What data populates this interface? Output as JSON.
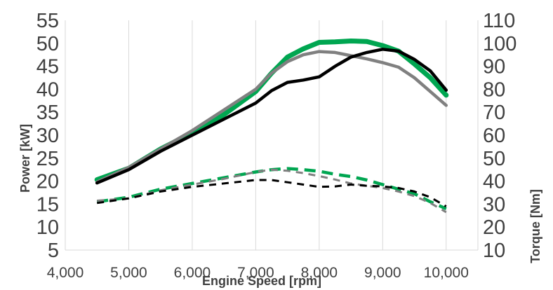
{
  "chart_data": {
    "type": "line",
    "xlabel": "Engine Speed [rpm]",
    "ylabel_left": "Power [kW]",
    "ylabel_right": "Torque [Nm]",
    "xlim": [
      4000,
      10500
    ],
    "x_ticks": [
      "4,000",
      "5,000",
      "6,000",
      "7,000",
      "8,000",
      "9,000",
      "10,000"
    ],
    "y_left_lim": [
      5,
      55
    ],
    "y_left_ticks": [
      "5",
      "10",
      "15",
      "20",
      "25",
      "30",
      "35",
      "40",
      "45",
      "50",
      "55"
    ],
    "y_right_lim": [
      10,
      110
    ],
    "y_right_ticks": [
      "10",
      "20",
      "30",
      "40",
      "50",
      "60",
      "70",
      "80",
      "90",
      "100",
      "110"
    ],
    "grid": "vertical",
    "legend": "none",
    "series": [
      {
        "axis": "left",
        "style": "solid",
        "color": "#00a651",
        "x": [
          4500,
          5000,
          5500,
          6000,
          6500,
          7000,
          7250,
          7500,
          7750,
          8000,
          8250,
          8500,
          8750,
          9000,
          9250,
          9500,
          9750,
          10000
        ],
        "y": [
          20.3,
          22.8,
          27.0,
          30.5,
          34.5,
          39.5,
          43.5,
          47.0,
          48.8,
          50.2,
          50.3,
          50.5,
          50.4,
          49.5,
          48.3,
          45.5,
          42.5,
          38.7
        ]
      },
      {
        "axis": "left",
        "style": "solid",
        "color": "#808080",
        "x": [
          4500,
          5000,
          5500,
          6000,
          6500,
          7000,
          7250,
          7500,
          7750,
          8000,
          8250,
          8500,
          8750,
          9000,
          9250,
          9500,
          9750,
          10000
        ],
        "y": [
          19.8,
          23.0,
          27.0,
          31.0,
          35.5,
          40.0,
          43.5,
          46.0,
          47.5,
          48.2,
          48.0,
          47.3,
          46.6,
          45.8,
          44.8,
          42.5,
          39.5,
          36.5
        ]
      },
      {
        "axis": "left",
        "style": "solid",
        "color": "#000000",
        "x": [
          4500,
          5000,
          5500,
          6000,
          6500,
          7000,
          7250,
          7500,
          7750,
          8000,
          8250,
          8500,
          8750,
          9000,
          9250,
          9500,
          9750,
          10000
        ],
        "y": [
          19.6,
          22.5,
          26.5,
          30.0,
          33.5,
          37.0,
          39.7,
          41.5,
          42.0,
          42.7,
          45.0,
          47.0,
          48.0,
          48.7,
          48.3,
          46.5,
          44.0,
          39.8
        ]
      },
      {
        "axis": "right",
        "style": "dashed",
        "color": "#00a651",
        "x": [
          4500,
          5000,
          5500,
          6000,
          6500,
          7000,
          7250,
          7500,
          7750,
          8000,
          8250,
          8500,
          8750,
          9000,
          9250,
          9500,
          9750,
          10000
        ],
        "y": [
          31.0,
          33.0,
          36.5,
          39.0,
          41.5,
          44.0,
          45.0,
          45.5,
          45.0,
          44.3,
          43.0,
          42.0,
          40.5,
          38.5,
          36.5,
          34.5,
          31.0,
          28.0
        ]
      },
      {
        "axis": "right",
        "style": "dashed",
        "color": "#808080",
        "x": [
          4500,
          5000,
          5500,
          6000,
          6500,
          7000,
          7250,
          7500,
          7750,
          8000,
          8250,
          8500,
          8750,
          9000,
          9250,
          9500,
          9750,
          10000
        ],
        "y": [
          31.5,
          32.5,
          36.0,
          38.5,
          41.0,
          44.0,
          45.0,
          44.5,
          43.5,
          42.2,
          40.7,
          39.0,
          38.0,
          37.0,
          35.5,
          33.5,
          30.5,
          26.5
        ]
      },
      {
        "axis": "right",
        "style": "dashed",
        "color": "#000000",
        "x": [
          4500,
          5000,
          5500,
          6000,
          6500,
          7000,
          7250,
          7500,
          7750,
          8000,
          8250,
          8500,
          8750,
          9000,
          9250,
          9500,
          9750,
          10000
        ],
        "y": [
          30.5,
          32.5,
          35.5,
          37.5,
          39.0,
          40.5,
          40.5,
          39.5,
          38.5,
          37.5,
          37.7,
          38.5,
          38.0,
          37.7,
          37.0,
          35.5,
          33.0,
          29.0
        ]
      }
    ]
  }
}
